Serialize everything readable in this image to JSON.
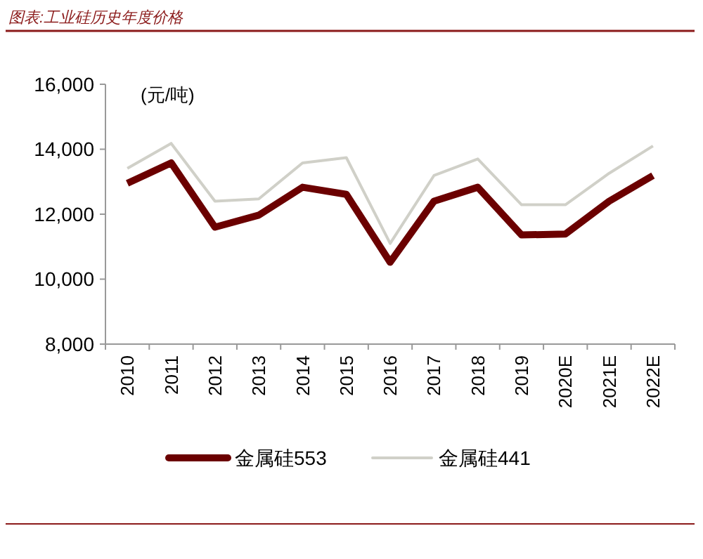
{
  "chart_data": {
    "type": "line",
    "title": "图表:工业硅历史年度价格",
    "ylabel": "(元/吨)",
    "categories": [
      "2010",
      "2011",
      "2012",
      "2013",
      "2014",
      "2015",
      "2016",
      "2017",
      "2018",
      "2019",
      "2020E",
      "2021E",
      "2022E"
    ],
    "series": [
      {
        "name": "金属硅553",
        "color": "#6b0000",
        "values": [
          12950,
          13580,
          11600,
          11970,
          12830,
          12610,
          10520,
          12400,
          12830,
          11360,
          11390,
          12400,
          13190
        ]
      },
      {
        "name": "金属硅441",
        "color": "#d0d0c8",
        "values": [
          13410,
          14180,
          12400,
          12470,
          13580,
          13740,
          11100,
          13190,
          13700,
          12290,
          12290,
          13260,
          14100
        ]
      }
    ],
    "ylim": [
      8000,
      16000
    ],
    "yticks": [
      {
        "value": 8000,
        "label": "8,000"
      },
      {
        "value": 10000,
        "label": "10,000"
      },
      {
        "value": 12000,
        "label": "12,000"
      },
      {
        "value": 14000,
        "label": "14,000"
      },
      {
        "value": 16000,
        "label": "16,000"
      }
    ],
    "grid": false,
    "legend": "bottom",
    "marker": "none",
    "line_style": "solid"
  }
}
